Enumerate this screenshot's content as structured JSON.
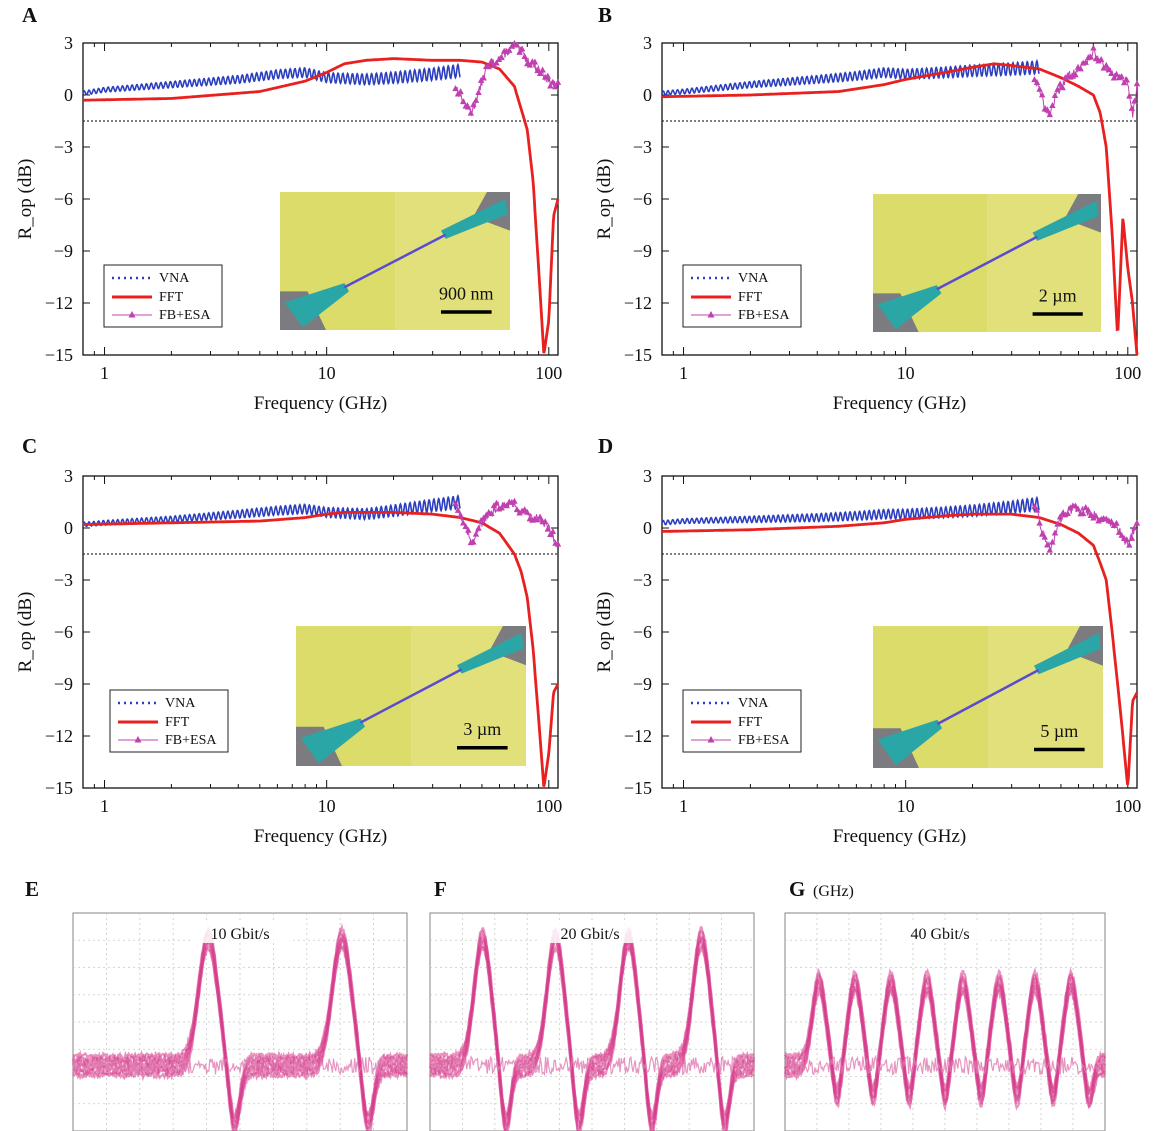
{
  "chart_data": [
    {
      "panel": "A",
      "type": "line",
      "xscale": "log",
      "xlabel": "Frequency (GHz)",
      "ylabel": "R_op (dB)",
      "xlim": [
        0.8,
        110
      ],
      "ylim": [
        -15,
        3
      ],
      "xticks": [
        "1",
        "10",
        "100"
      ],
      "yticks": [
        "3",
        "0",
        "−3",
        "−6",
        "−9",
        "−12",
        "−15"
      ],
      "reference_level": -1.5,
      "inset_scale_bar": "900 nm",
      "legend": [
        "VNA",
        "FFT",
        "FB+ESA"
      ],
      "series": [
        {
          "name": "VNA",
          "color": "#2b3fbf",
          "x": [
            0.8,
            1,
            2,
            4,
            6,
            8,
            10,
            15,
            20,
            30,
            40
          ],
          "y": [
            0.1,
            0.3,
            0.6,
            0.9,
            1.2,
            1.3,
            1.0,
            0.9,
            1.0,
            1.2,
            1.4
          ]
        },
        {
          "name": "FFT",
          "color": "#e8201f",
          "x": [
            0.8,
            2,
            5,
            8,
            10,
            12,
            15,
            20,
            30,
            40,
            50,
            60,
            70,
            80,
            85,
            90,
            95,
            100,
            105,
            110
          ],
          "y": [
            -0.3,
            -0.2,
            0.2,
            0.8,
            1.3,
            1.8,
            2.0,
            2.1,
            2.0,
            2.0,
            1.9,
            1.5,
            0.5,
            -2.0,
            -5.0,
            -10.0,
            -15.0,
            -13.0,
            -7.0,
            -6.0
          ]
        },
        {
          "name": "FB+ESA",
          "color": "#c040b0",
          "x": [
            38,
            42,
            45,
            48,
            52,
            58,
            65,
            70,
            75,
            80,
            90,
            100,
            110
          ],
          "y": [
            0.5,
            -0.5,
            -1.0,
            0.0,
            1.5,
            2.0,
            2.5,
            2.8,
            2.5,
            2.0,
            1.5,
            0.8,
            0.5
          ]
        }
      ]
    },
    {
      "panel": "B",
      "type": "line",
      "xscale": "log",
      "xlabel": "Frequency (GHz)",
      "ylabel": "R_op (dB)",
      "xlim": [
        0.8,
        110
      ],
      "ylim": [
        -15,
        3
      ],
      "xticks": [
        "1",
        "10",
        "100"
      ],
      "yticks": [
        "3",
        "0",
        "−3",
        "−6",
        "−9",
        "−12",
        "−15"
      ],
      "reference_level": -1.5,
      "inset_scale_bar": "2 µm",
      "legend": [
        "VNA",
        "FFT",
        "FB+ESA"
      ],
      "series": [
        {
          "name": "VNA",
          "color": "#2b3fbf",
          "x": [
            0.8,
            1,
            2,
            4,
            6,
            8,
            10,
            15,
            20,
            30,
            40
          ],
          "y": [
            0.1,
            0.2,
            0.6,
            0.9,
            1.1,
            1.3,
            1.2,
            1.3,
            1.4,
            1.5,
            1.6
          ]
        },
        {
          "name": "FFT",
          "color": "#e8201f",
          "x": [
            0.8,
            2,
            5,
            8,
            10,
            15,
            20,
            25,
            30,
            40,
            50,
            60,
            70,
            75,
            80,
            85,
            90,
            95,
            100,
            105,
            110
          ],
          "y": [
            -0.1,
            0.0,
            0.2,
            0.6,
            0.9,
            1.3,
            1.6,
            1.8,
            1.7,
            1.5,
            1.0,
            0.5,
            0.0,
            -1.0,
            -3.0,
            -8.0,
            -14.0,
            -7.0,
            -10.0,
            -12.0,
            -15.0
          ]
        },
        {
          "name": "FB+ESA",
          "color": "#c040b0",
          "x": [
            38,
            42,
            44,
            46,
            50,
            55,
            60,
            65,
            70,
            75,
            80,
            90,
            100,
            105,
            110
          ],
          "y": [
            1.0,
            -0.5,
            -1.2,
            -0.5,
            0.5,
            1.2,
            1.5,
            2.0,
            2.5,
            2.0,
            1.5,
            1.0,
            0.8,
            -1.2,
            0.5
          ]
        }
      ]
    },
    {
      "panel": "C",
      "type": "line",
      "xscale": "log",
      "xlabel": "Frequency (GHz)",
      "ylabel": "R_op (dB)",
      "xlim": [
        0.8,
        110
      ],
      "ylim": [
        -15,
        3
      ],
      "xticks": [
        "1",
        "10",
        "100"
      ],
      "yticks": [
        "3",
        "0",
        "−3",
        "−6",
        "−9",
        "−12",
        "−15"
      ],
      "reference_level": -1.5,
      "inset_scale_bar": "3 µm",
      "legend": [
        "VNA",
        "FFT",
        "FB+ESA"
      ],
      "series": [
        {
          "name": "VNA",
          "color": "#2b3fbf",
          "x": [
            0.8,
            1,
            2,
            4,
            6,
            8,
            10,
            15,
            20,
            30,
            40
          ],
          "y": [
            0.2,
            0.3,
            0.5,
            0.8,
            1.0,
            1.1,
            0.9,
            0.8,
            1.0,
            1.3,
            1.5
          ]
        },
        {
          "name": "FFT",
          "color": "#e8201f",
          "x": [
            0.8,
            2,
            5,
            8,
            10,
            12,
            15,
            20,
            30,
            40,
            50,
            60,
            70,
            75,
            80,
            85,
            90,
            95,
            100,
            105,
            110
          ],
          "y": [
            0.2,
            0.3,
            0.4,
            0.6,
            0.8,
            0.9,
            0.9,
            0.9,
            0.8,
            0.6,
            0.3,
            -0.3,
            -1.5,
            -2.5,
            -4.0,
            -7.0,
            -11.0,
            -15.0,
            -13.0,
            -9.5,
            -9.0
          ]
        },
        {
          "name": "FB+ESA",
          "color": "#c040b0",
          "x": [
            38,
            42,
            45,
            48,
            52,
            58,
            65,
            70,
            75,
            80,
            90,
            100,
            110
          ],
          "y": [
            1.5,
            0.0,
            -0.8,
            0.0,
            0.5,
            1.2,
            1.5,
            1.3,
            1.0,
            0.8,
            0.5,
            0.0,
            -1.0
          ]
        }
      ]
    },
    {
      "panel": "D",
      "type": "line",
      "xscale": "log",
      "xlabel": "Frequency (GHz)",
      "ylabel": "R_op (dB)",
      "xlim": [
        0.8,
        110
      ],
      "ylim": [
        -15,
        3
      ],
      "xticks": [
        "1",
        "10",
        "100"
      ],
      "yticks": [
        "3",
        "0",
        "−3",
        "−6",
        "−9",
        "−12",
        "−15"
      ],
      "reference_level": -1.5,
      "inset_scale_bar": "5 µm",
      "legend": [
        "VNA",
        "FFT",
        "FB+ESA"
      ],
      "series": [
        {
          "name": "VNA",
          "color": "#2b3fbf",
          "x": [
            0.8,
            1,
            2,
            4,
            6,
            8,
            10,
            15,
            20,
            30,
            40
          ],
          "y": [
            0.3,
            0.4,
            0.5,
            0.6,
            0.7,
            0.8,
            0.8,
            0.9,
            1.0,
            1.2,
            1.4
          ]
        },
        {
          "name": "FFT",
          "color": "#e8201f",
          "x": [
            0.8,
            2,
            5,
            8,
            10,
            15,
            20,
            30,
            40,
            50,
            60,
            70,
            75,
            80,
            85,
            90,
            95,
            100,
            105,
            110
          ],
          "y": [
            -0.2,
            -0.1,
            0.1,
            0.3,
            0.5,
            0.7,
            0.8,
            0.8,
            0.6,
            0.2,
            -0.3,
            -1.0,
            -2.0,
            -3.0,
            -6.0,
            -9.0,
            -12.0,
            -15.0,
            -10.0,
            -9.5
          ]
        },
        {
          "name": "FB+ESA",
          "color": "#c040b0",
          "x": [
            38,
            42,
            45,
            48,
            52,
            58,
            65,
            70,
            75,
            80,
            90,
            100,
            110
          ],
          "y": [
            1.3,
            -0.5,
            -1.2,
            0.0,
            1.0,
            1.1,
            1.0,
            0.8,
            0.6,
            0.5,
            0.0,
            -1.0,
            0.3
          ]
        }
      ]
    },
    {
      "panel": "E",
      "type": "eye-diagram",
      "label": "10 Gbit/s",
      "pulses": 2
    },
    {
      "panel": "F",
      "type": "eye-diagram",
      "label": "20 Gbit/s",
      "pulses": 4
    },
    {
      "panel": "G",
      "type": "eye-diagram",
      "label": "40 Gbit/s",
      "unit_note": "(GHz)",
      "pulses": 8
    }
  ]
}
